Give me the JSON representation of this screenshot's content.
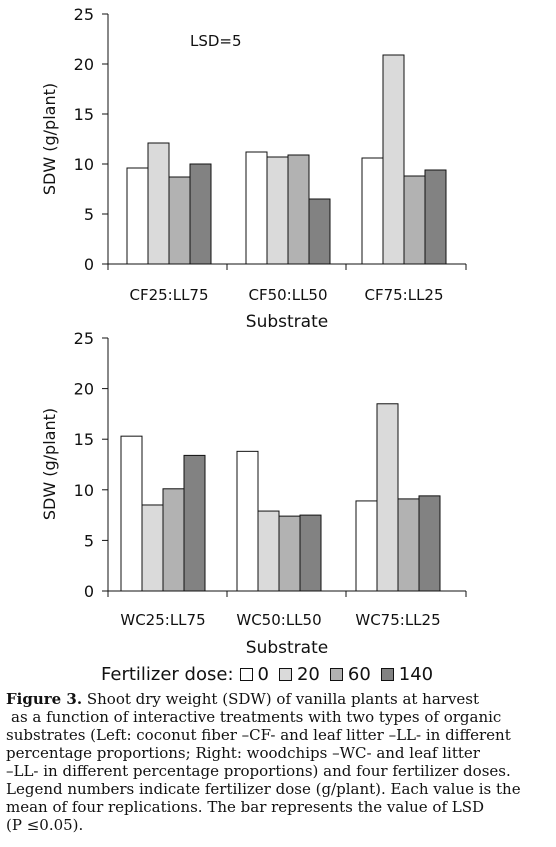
{
  "chart_data": [
    {
      "type": "bar",
      "annotation": "LSD=5",
      "ylabel": "SDW  (g/plant)",
      "xlabel": "Substrate",
      "ylim": [
        0,
        25
      ],
      "yticks": [
        "0",
        "5",
        "10",
        "15",
        "20",
        "25"
      ],
      "categories": [
        "CF25:LL75",
        "CF50:LL50",
        "CF75:LL25"
      ],
      "series": [
        {
          "name": "0",
          "values": [
            9.6,
            11.2,
            10.6
          ]
        },
        {
          "name": "20",
          "values": [
            12.1,
            10.7,
            20.9
          ]
        },
        {
          "name": "60",
          "values": [
            8.7,
            10.9,
            8.8
          ]
        },
        {
          "name": "140",
          "values": [
            10.0,
            6.5,
            9.4
          ]
        }
      ]
    },
    {
      "type": "bar",
      "ylabel": "SDW  (g/plant)",
      "xlabel": "Substrate",
      "ylim": [
        0,
        25
      ],
      "yticks": [
        "0",
        "5",
        "10",
        "15",
        "20",
        "25"
      ],
      "categories": [
        "WC25:LL75",
        "WC50:LL50",
        "WC75:LL25"
      ],
      "series": [
        {
          "name": "0",
          "values": [
            15.3,
            13.8,
            8.9
          ]
        },
        {
          "name": "20",
          "values": [
            8.5,
            7.9,
            18.5
          ]
        },
        {
          "name": "60",
          "values": [
            10.1,
            7.4,
            9.1
          ]
        },
        {
          "name": "140",
          "values": [
            13.4,
            7.5,
            9.4
          ]
        }
      ]
    }
  ],
  "legend": {
    "title": "Fertilizer dose:",
    "items": [
      {
        "label": "0",
        "color": "#ffffff"
      },
      {
        "label": "20",
        "color": "#dadada"
      },
      {
        "label": "60",
        "color": "#b2b2b2"
      },
      {
        "label": "140",
        "color": "#828282"
      }
    ]
  },
  "caption": {
    "label": "Figure 3.",
    "lines": [
      " Shoot dry weight (SDW) of vanilla plants at harvest",
      "as a function of interactive treatments with two types of organic",
      "substrates (Left: coconut fiber –CF- and leaf litter –LL- in different",
      "percentage proportions; Right: woodchips –WC- and leaf litter",
      "–LL- in different percentage proportions) and four fertilizer doses.",
      "Legend numbers indicate fertilizer dose (g/plant). Each value is the",
      "mean of four replications. The bar represents the value of LSD",
      "(P ≤0.05)."
    ]
  }
}
